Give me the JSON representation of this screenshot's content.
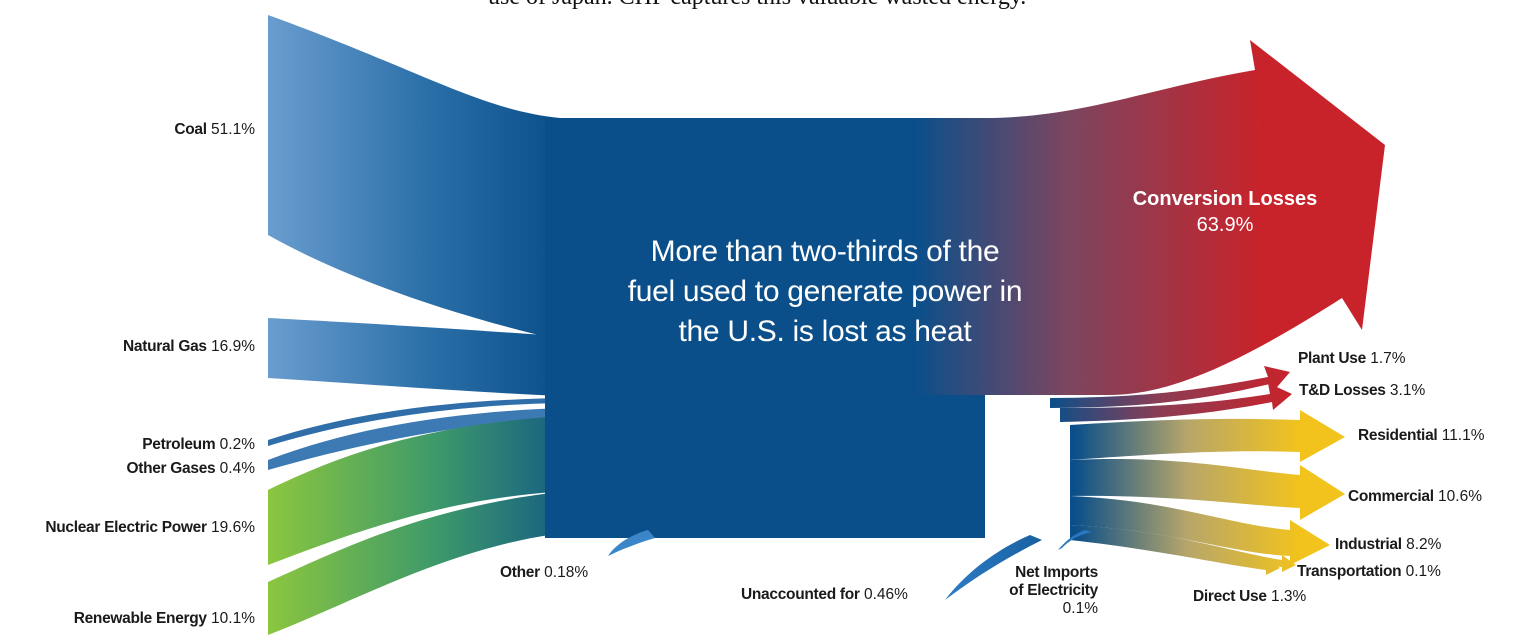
{
  "caption": "use of Japan. CHP captures this valuable wasted energy.",
  "headline": {
    "line1": "More than two-thirds of the",
    "line2": "fuel used to generate power in",
    "line3": "the U.S. is lost as heat"
  },
  "sources": [
    {
      "name": "Coal",
      "pct": "51.1%"
    },
    {
      "name": "Natural Gas",
      "pct": "16.9%"
    },
    {
      "name": "Petroleum",
      "pct": "0.2%"
    },
    {
      "name": "Other Gases",
      "pct": "0.4%"
    },
    {
      "name": "Nuclear Electric Power",
      "pct": "19.6%"
    },
    {
      "name": "Renewable Energy",
      "pct": "10.1%"
    },
    {
      "name": "Other",
      "pct": "0.18%"
    },
    {
      "name": "Unaccounted for",
      "pct": "0.46%"
    },
    {
      "name1": "Net Imports",
      "name2": "of Electricity",
      "pct": "0.1%"
    }
  ],
  "outputs": [
    {
      "name": "Conversion Losses",
      "pct": "63.9%"
    },
    {
      "name": "Plant Use",
      "pct": "1.7%"
    },
    {
      "name": "T&D Losses",
      "pct": "3.1%"
    },
    {
      "name": "Residential",
      "pct": "11.1%"
    },
    {
      "name": "Commercial",
      "pct": "10.6%"
    },
    {
      "name": "Industrial",
      "pct": "8.2%"
    },
    {
      "name": "Transportation",
      "pct": "0.1%"
    },
    {
      "name": "Direct Use",
      "pct": "1.3%"
    }
  ],
  "colors": {
    "fossil_light": "#6699cc",
    "fossil_dark": "#0b4f8a",
    "renewable_light": "#8cc63f",
    "loss_red": "#c8232b",
    "use_yellow": "#f2c31c"
  }
}
